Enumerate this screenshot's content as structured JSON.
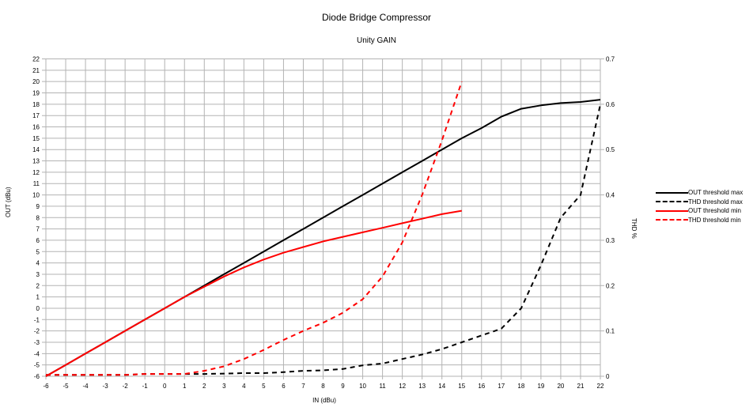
{
  "chart": {
    "title": "Diode Bridge Compressor",
    "subtitle": "Unity GAIN",
    "xlabel": "IN (dBu)",
    "ylabel": "OUT (dBu)",
    "y2label": "THD %",
    "legend": [
      {
        "label": "OUT threshold max",
        "color": "#000000",
        "dash": "solid"
      },
      {
        "label": "THD threshold max",
        "color": "#000000",
        "dash": "dashed"
      },
      {
        "label": "OUT threshold min",
        "color": "#ff0000",
        "dash": "solid"
      },
      {
        "label": "THD threshold min",
        "color": "#ff0000",
        "dash": "dashed"
      }
    ]
  },
  "chart_data": {
    "type": "line",
    "title": "Diode Bridge Compressor",
    "subtitle": "Unity GAIN",
    "xlabel": "IN (dBu)",
    "ylabel": "OUT (dBu)",
    "y2label": "THD %",
    "xlim": [
      -6,
      22
    ],
    "ylim": [
      -6,
      22
    ],
    "y2lim": [
      0,
      0.7
    ],
    "x_ticks": [
      -6,
      -5,
      -4,
      -3,
      -2,
      -1,
      0,
      1,
      2,
      3,
      4,
      5,
      6,
      7,
      8,
      9,
      10,
      11,
      12,
      13,
      14,
      15,
      16,
      17,
      18,
      19,
      20,
      21,
      22
    ],
    "y_ticks": [
      -6,
      -5,
      -4,
      -3,
      -2,
      -1,
      0,
      1,
      2,
      3,
      4,
      5,
      6,
      7,
      8,
      9,
      10,
      11,
      12,
      13,
      14,
      15,
      16,
      17,
      18,
      19,
      20,
      21,
      22
    ],
    "y2_ticks": [
      0,
      0.1,
      0.2,
      0.3,
      0.4,
      0.5,
      0.6,
      0.7
    ],
    "grid": true,
    "legend_position": "right",
    "series": [
      {
        "name": "OUT threshold max",
        "axis": "left",
        "color": "#000000",
        "style": "solid",
        "x": [
          -6,
          -5,
          -4,
          -3,
          -2,
          -1,
          0,
          1,
          2,
          3,
          4,
          5,
          6,
          7,
          8,
          9,
          10,
          11,
          12,
          13,
          14,
          15,
          16,
          17,
          18,
          19,
          20,
          21,
          22
        ],
        "values": [
          -6,
          -5,
          -4,
          -3,
          -2,
          -1,
          0,
          1,
          2,
          3,
          4,
          5,
          6,
          7,
          8,
          9,
          10,
          11,
          12,
          13,
          14,
          15,
          15.9,
          16.9,
          17.6,
          17.9,
          18.1,
          18.2,
          18.4
        ]
      },
      {
        "name": "THD threshold max",
        "axis": "right",
        "color": "#000000",
        "style": "dashed",
        "x": [
          -6,
          -5,
          -4,
          -3,
          -2,
          -1,
          0,
          1,
          2,
          3,
          4,
          5,
          6,
          7,
          8,
          9,
          10,
          11,
          12,
          13,
          14,
          15,
          16,
          17,
          18,
          19,
          20,
          21,
          22
        ],
        "values": [
          0.003,
          0.003,
          0.003,
          0.003,
          0.003,
          0.005,
          0.005,
          0.005,
          0.005,
          0.006,
          0.007,
          0.007,
          0.009,
          0.012,
          0.013,
          0.016,
          0.024,
          0.028,
          0.038,
          0.048,
          0.06,
          0.075,
          0.09,
          0.105,
          0.15,
          0.245,
          0.35,
          0.4,
          0.6
        ]
      },
      {
        "name": "OUT threshold min",
        "axis": "left",
        "color": "#ff0000",
        "style": "solid",
        "x": [
          -6,
          -5,
          -4,
          -3,
          -2,
          -1,
          0,
          1,
          2,
          3,
          4,
          5,
          6,
          7,
          8,
          9,
          10,
          11,
          12,
          13,
          14,
          15
        ],
        "values": [
          -6,
          -5,
          -4,
          -3,
          -2,
          -1,
          0,
          1,
          1.9,
          2.8,
          3.6,
          4.3,
          4.9,
          5.4,
          5.9,
          6.3,
          6.7,
          7.1,
          7.5,
          7.9,
          8.3,
          8.6
        ]
      },
      {
        "name": "THD threshold min",
        "axis": "right",
        "color": "#ff0000",
        "style": "dashed",
        "x": [
          -6,
          -5,
          -4,
          -3,
          -2,
          -1,
          0,
          1,
          2,
          3,
          4,
          5,
          6,
          7,
          8,
          9,
          10,
          11,
          12,
          13,
          14,
          15
        ],
        "values": [
          0.003,
          0.003,
          0.003,
          0.003,
          0.003,
          0.005,
          0.005,
          0.005,
          0.012,
          0.022,
          0.038,
          0.058,
          0.08,
          0.1,
          0.118,
          0.14,
          0.17,
          0.22,
          0.295,
          0.4,
          0.52,
          0.65
        ]
      }
    ]
  }
}
